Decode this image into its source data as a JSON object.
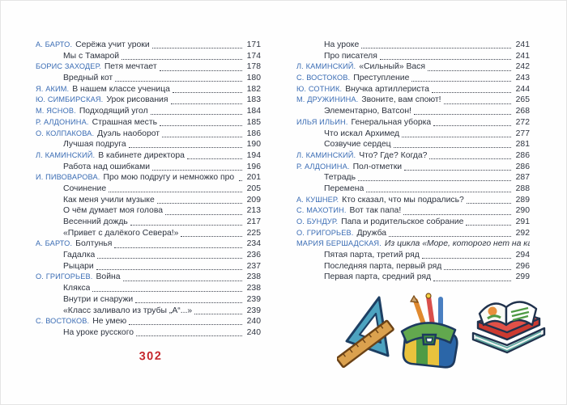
{
  "folio": "302",
  "colors": {
    "author_blue": "#3a6cb4",
    "text_dark": "#2e3440",
    "folio_red": "#c5262c",
    "leader_dot": "#3f4450",
    "page_bg": "#fefefe",
    "border": "#e4e4e4"
  },
  "toc": {
    "left_column": [
      {
        "author": "А. БАРТО.",
        "title": "Серёжа учит уроки",
        "page": "171"
      },
      {
        "title": "Мы с Тамарой",
        "page": "174",
        "indent": true
      },
      {
        "author": "БОРИС ЗАХОДЕР.",
        "title": "Петя мечтает",
        "page": "178"
      },
      {
        "title": "Вредный кот",
        "page": "180",
        "indent": true
      },
      {
        "author": "Я. АКИМ.",
        "title": "В нашем классе ученица",
        "page": "182"
      },
      {
        "author": "Ю. СИМБИРСКАЯ.",
        "title": "Урок рисования",
        "page": "183"
      },
      {
        "author": "М. ЯСНОВ.",
        "title": "Подходящий угол",
        "page": "184"
      },
      {
        "author": "Р. АЛДОНИНА.",
        "title": "Страшная месть",
        "page": "185"
      },
      {
        "author": "О. КОЛПАКОВА.",
        "title": "Дуэль наоборот",
        "page": "186"
      },
      {
        "title": "Лучшая подруга",
        "page": "190",
        "indent": true
      },
      {
        "author": "Л. КАМИНСКИЙ.",
        "title": "В кабинете директора",
        "page": "194"
      },
      {
        "title": "Работа над ошибками",
        "page": "196",
        "indent": true
      },
      {
        "author": "И. ПИВОВАРОВА.",
        "title": "Про мою подругу и немножко про меня",
        "page": "201"
      },
      {
        "title": "Сочинение",
        "page": "205",
        "indent": true
      },
      {
        "title": "Как меня учили музыке",
        "page": "209",
        "indent": true
      },
      {
        "title": "О чём думает моя голова",
        "page": "213",
        "indent": true
      },
      {
        "title": "Весенний дождь",
        "page": "217",
        "indent": true
      },
      {
        "title": "«Привет с далёкого Севера!»",
        "page": "225",
        "indent": true
      },
      {
        "author": "А. БАРТО.",
        "title": "Болтунья",
        "page": "234"
      },
      {
        "title": "Гадалка",
        "page": "236",
        "indent": true
      },
      {
        "title": "Рыцари",
        "page": "237",
        "indent": true
      },
      {
        "author": "О. ГРИГОРЬЕВ.",
        "title": "Война",
        "page": "238"
      },
      {
        "title": "Клякса",
        "page": "238",
        "indent": true
      },
      {
        "title": "Внутри и снаружи",
        "page": "239",
        "indent": true
      },
      {
        "title": "«Класс заливало из трубы „А“...»",
        "page": "239",
        "indent": true
      },
      {
        "author": "С. ВОСТОКОВ.",
        "title": "Не умею",
        "page": "240"
      },
      {
        "title": "На уроке русского",
        "page": "240",
        "indent": true
      }
    ],
    "right_column": [
      {
        "title": "На уроке",
        "page": "241",
        "indent": true
      },
      {
        "title": "Про писателя",
        "page": "241",
        "indent": true
      },
      {
        "author": "Л. КАМИНСКИЙ.",
        "title": "«Сильный» Вася",
        "page": "242"
      },
      {
        "author": "С. ВОСТОКОВ.",
        "title": "Преступление",
        "page": "243"
      },
      {
        "author": "Ю. СОТНИК.",
        "title": "Внучка артиллериста",
        "page": "244"
      },
      {
        "author": "М. ДРУЖИНИНА.",
        "title": "Звоните, вам споют!",
        "page": "265"
      },
      {
        "title": "Элементарно, Ватсон!",
        "page": "268",
        "indent": true
      },
      {
        "author": "ИЛЬЯ ИЛЬИН.",
        "title": "Генеральная уборка",
        "page": "272"
      },
      {
        "title": "Что искал Архимед",
        "page": "277",
        "indent": true
      },
      {
        "title": "Созвучие сердец",
        "page": "281",
        "indent": true
      },
      {
        "author": "Л. КАМИНСКИЙ.",
        "title": "Что? Где? Когда?",
        "page": "286"
      },
      {
        "author": "Р. АЛДОНИНА.",
        "title": "Пол-отметки",
        "page": "286"
      },
      {
        "title": "Тетрадь",
        "page": "287",
        "indent": true
      },
      {
        "title": "Перемена",
        "page": "288",
        "indent": true
      },
      {
        "author": "А. КУШНЕР.",
        "title": "Кто сказал, что мы подрались?",
        "page": "289"
      },
      {
        "author": "С. МАХОТИН.",
        "title": "Вот так папа!",
        "page": "290"
      },
      {
        "author": "О. БУНДУР.",
        "title": "Папа и родительское собрание",
        "page": "291"
      },
      {
        "author": "О. ГРИГОРЬЕВ.",
        "title": "Дружба",
        "page": "292"
      },
      {
        "author": "МАРИЯ БЕРШАДСКАЯ.",
        "title": "Из цикла «Море, которого нет на карте»",
        "italic": true
      },
      {
        "title": "Пятая парта, третий ряд",
        "page": "294",
        "indent": true
      },
      {
        "title": "Последняя парта, первый ряд",
        "page": "296",
        "indent": true
      },
      {
        "title": "Первая парта, средний ряд",
        "page": "299",
        "indent": true
      }
    ]
  },
  "illustrations": [
    {
      "name": "set-square-ruler"
    },
    {
      "name": "pencil-case"
    },
    {
      "name": "book-stack"
    }
  ]
}
